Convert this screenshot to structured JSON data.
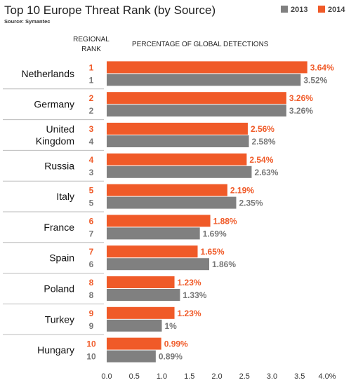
{
  "chart_data": {
    "type": "bar",
    "orientation": "horizontal",
    "title": "Top 10 Europe Threat Rank (by Source)",
    "source": "Source: Symantec",
    "rank_header_line1": "REGIONAL",
    "rank_header_line2": "RANK",
    "value_header": "PERCENTAGE OF GLOBAL DETECTIONS",
    "legend_position": "top-right",
    "categories": [
      [
        "Netherlands"
      ],
      [
        "Germany"
      ],
      [
        "United",
        "Kingdom"
      ],
      [
        "Russia"
      ],
      [
        "Italy"
      ],
      [
        "France"
      ],
      [
        "Spain"
      ],
      [
        "Poland"
      ],
      [
        "Turkey"
      ],
      [
        "Hungary"
      ]
    ],
    "series": [
      {
        "name": "2014",
        "color": "#f05a28",
        "values": [
          3.64,
          3.26,
          2.56,
          2.54,
          2.19,
          1.88,
          1.65,
          1.23,
          1.23,
          0.99
        ],
        "labels": [
          "3.64%",
          "3.26%",
          "2.56%",
          "2.54%",
          "2.19%",
          "1.88%",
          "1.65%",
          "1.23%",
          "1.23%",
          "0.99%"
        ],
        "ranks": [
          "1",
          "2",
          "3",
          "4",
          "5",
          "6",
          "7",
          "8",
          "9",
          "10"
        ]
      },
      {
        "name": "2013",
        "color": "#808080",
        "values": [
          3.52,
          3.26,
          2.58,
          2.63,
          2.35,
          1.69,
          1.86,
          1.33,
          1.0,
          0.89
        ],
        "labels": [
          "3.52%",
          "3.26%",
          "2.58%",
          "2.63%",
          "2.35%",
          "1.69%",
          "1.86%",
          "1.33%",
          "1%",
          "0.89%"
        ],
        "ranks": [
          "1",
          "2",
          "4",
          "3",
          "5",
          "7",
          "6",
          "8",
          "9",
          "10"
        ]
      }
    ],
    "legend_order": [
      "2013",
      "2014"
    ],
    "xlim": [
      0,
      4
    ],
    "ticks": [
      "0.0",
      "0.5",
      "1.0",
      "1.5",
      "2.0",
      "2.5",
      "3.0",
      "3.5",
      "4.0%"
    ],
    "grid": false
  }
}
